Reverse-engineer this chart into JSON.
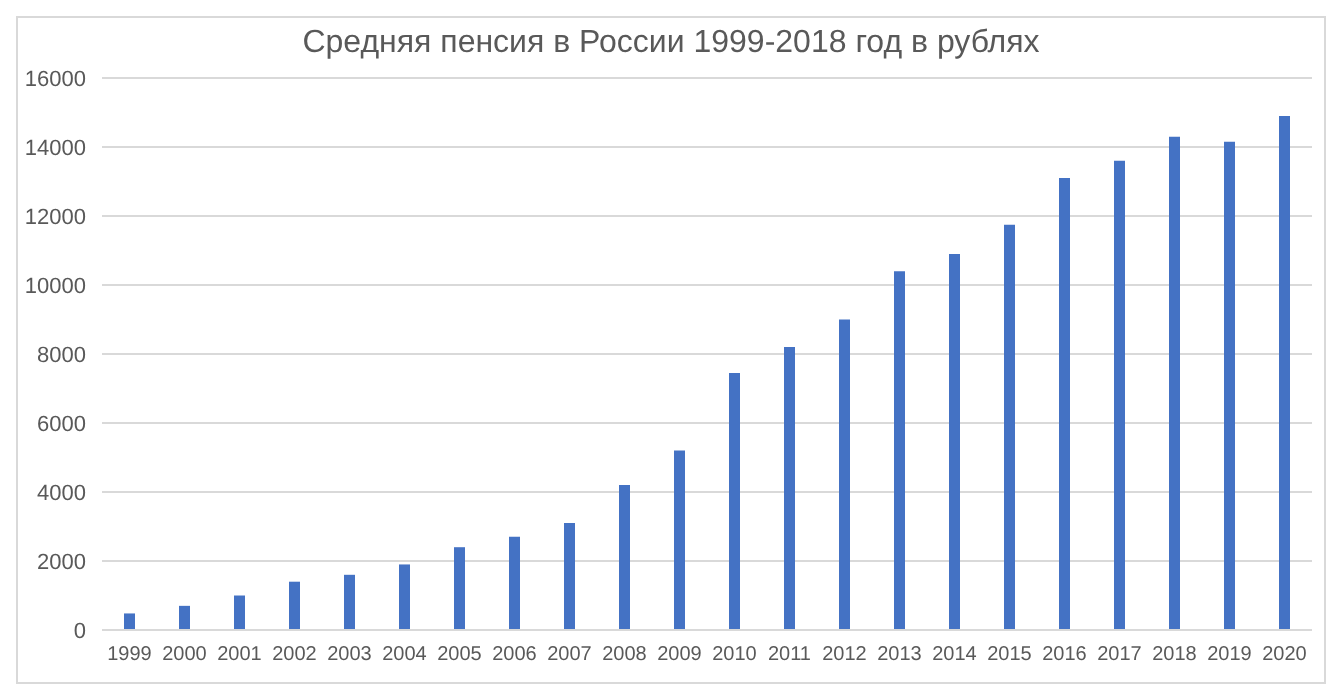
{
  "chart_data": {
    "type": "bar",
    "title": "Средняя пенсия в России 1999-2018 год в рублях",
    "categories": [
      "1999",
      "2000",
      "2001",
      "2002",
      "2003",
      "2004",
      "2005",
      "2006",
      "2007",
      "2008",
      "2009",
      "2010",
      "2011",
      "2012",
      "2013",
      "2014",
      "2015",
      "2016",
      "2017",
      "2018",
      "2019",
      "2020"
    ],
    "values": [
      480,
      700,
      1000,
      1400,
      1600,
      1900,
      2400,
      2700,
      3100,
      4200,
      5200,
      7450,
      8200,
      9000,
      10400,
      10900,
      11750,
      13100,
      13600,
      14300,
      14150,
      14900
    ],
    "color": "#4472c4",
    "ylim": [
      0,
      16000
    ],
    "yticks": [
      0,
      2000,
      4000,
      6000,
      8000,
      10000,
      12000,
      14000,
      16000
    ],
    "grid": "y",
    "legend": false
  }
}
